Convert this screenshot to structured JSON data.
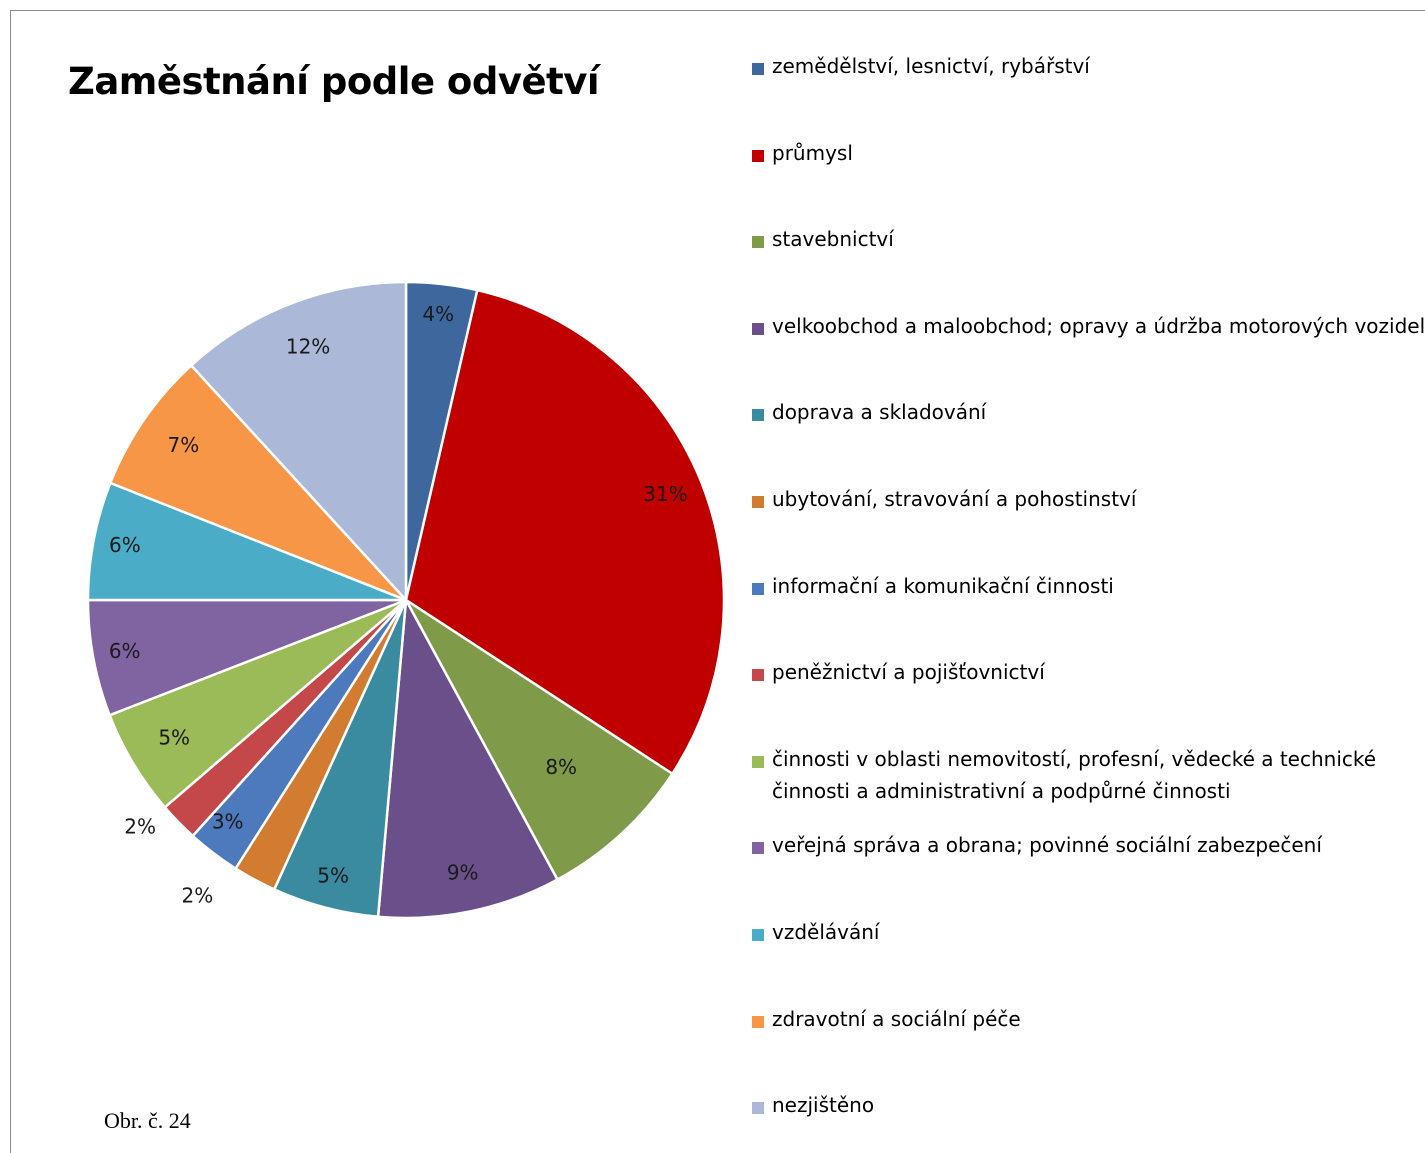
{
  "chart_data": {
    "type": "pie",
    "title": "Zaměstnání podle odvětví",
    "categories": [
      "zemědělství, lesnictví, rybářství",
      "průmysl",
      "stavebnictví",
      "velkoobchod a maloobchod; opravy a údržba motorových vozidel",
      "doprava a skladování",
      "ubytování, stravování a pohostinství",
      "informační a komunikační činnosti",
      "peněžnictví a pojišťovnictví",
      "činnosti v oblasti nemovitostí, profesní, vědecké a technické činnosti a administrativní a podpůrné činnosti",
      "veřejná správa a obrana; povinné sociální zabezpečení",
      "vzdělávání",
      "zdravotní a sociální péče",
      "nezjištěno"
    ],
    "values": [
      3.6,
      30.6,
      7.9,
      9.3,
      5.4,
      2.2,
      2.7,
      2.0,
      5.4,
      5.9,
      6.0,
      7.2,
      11.8
    ],
    "data_labels": [
      "4%",
      "31%",
      "8%",
      "9%",
      "5%",
      "2%",
      "3%",
      "2%",
      "5%",
      "6%",
      "6%",
      "7%",
      "12%"
    ],
    "colors": [
      "#3e689d",
      "#c00000",
      "#7f9b49",
      "#6b4f8a",
      "#3a8ba0",
      "#d27c32",
      "#4d79bd",
      "#c4484a",
      "#9bbb59",
      "#8064a2",
      "#4aacc6",
      "#f79646",
      "#abb8d8"
    ],
    "legend_position": "right",
    "start_angle_deg": 0,
    "direction": "clockwise"
  },
  "legend": {
    "items": [
      "zemědělství, lesnictví, rybářství",
      "průmysl",
      "stavebnictví",
      "velkoobchod a maloobchod; opravy a údržba motorových vozidel",
      "doprava a skladování",
      "ubytování, stravování a pohostinství",
      "informační a komunikační činnosti",
      "peněžnictví a pojišťovnictví",
      "činnosti v oblasti nemovitostí, profesní, vědecké a technické činnosti a administrativní a podpůrné činnosti",
      "veřejná správa a obrana; povinné sociální zabezpečení",
      "vzdělávání",
      "zdravotní a sociální péče",
      "nezjištěno"
    ]
  },
  "caption": "Obr. č. 24"
}
